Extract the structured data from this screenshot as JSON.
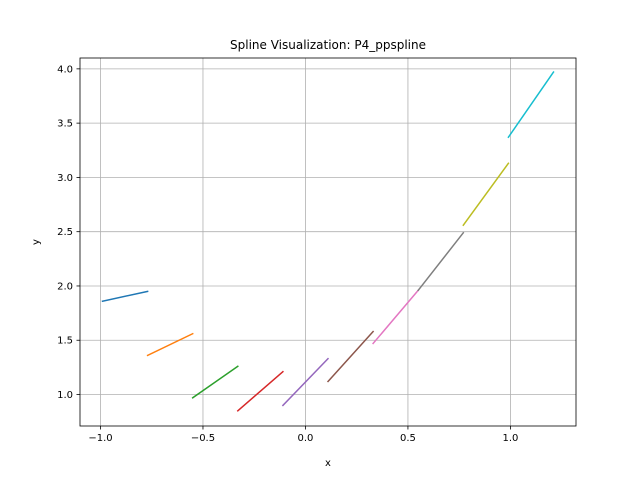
{
  "chart_data": {
    "type": "line",
    "title": "Spline Visualization: P4_ppspline",
    "xlabel": "x",
    "ylabel": "y",
    "xlim": [
      -1.1,
      1.32
    ],
    "ylim": [
      0.71,
      4.1
    ],
    "grid": true,
    "x_ticks": [
      {
        "value": -1.0,
        "label": "−1.0"
      },
      {
        "value": -0.5,
        "label": "−0.5"
      },
      {
        "value": 0.0,
        "label": "0.0"
      },
      {
        "value": 0.5,
        "label": "0.5"
      },
      {
        "value": 1.0,
        "label": "1.0"
      }
    ],
    "y_ticks": [
      {
        "value": 1.0,
        "label": "1.0"
      },
      {
        "value": 1.5,
        "label": "1.5"
      },
      {
        "value": 2.0,
        "label": "2.0"
      },
      {
        "value": 2.5,
        "label": "2.5"
      },
      {
        "value": 3.0,
        "label": "3.0"
      },
      {
        "value": 3.5,
        "label": "3.5"
      },
      {
        "value": 4.0,
        "label": "4.0"
      }
    ],
    "series": [
      {
        "color": "#1f77b4",
        "x": [
          -0.99,
          -0.77
        ],
        "y": [
          1.86,
          1.95
        ]
      },
      {
        "color": "#ff7f0e",
        "x": [
          -0.77,
          -0.55
        ],
        "y": [
          1.36,
          1.56
        ]
      },
      {
        "color": "#2ca02c",
        "x": [
          -0.55,
          -0.33
        ],
        "y": [
          0.97,
          1.26
        ]
      },
      {
        "color": "#d62728",
        "x": [
          -0.33,
          -0.11
        ],
        "y": [
          0.85,
          1.21
        ]
      },
      {
        "color": "#9467bd",
        "x": [
          -0.11,
          0.11
        ],
        "y": [
          0.9,
          1.33
        ]
      },
      {
        "color": "#8c564b",
        "x": [
          0.11,
          0.33
        ],
        "y": [
          1.12,
          1.58
        ]
      },
      {
        "color": "#e377c2",
        "x": [
          0.33,
          0.55
        ],
        "y": [
          1.47,
          1.96
        ]
      },
      {
        "color": "#7f7f7f",
        "x": [
          0.55,
          0.77
        ],
        "y": [
          1.96,
          2.49
        ]
      },
      {
        "color": "#bcbd22",
        "x": [
          0.77,
          0.99
        ],
        "y": [
          2.56,
          3.13
        ]
      },
      {
        "color": "#17becf",
        "x": [
          0.99,
          1.21
        ],
        "y": [
          3.37,
          3.97
        ]
      }
    ]
  }
}
